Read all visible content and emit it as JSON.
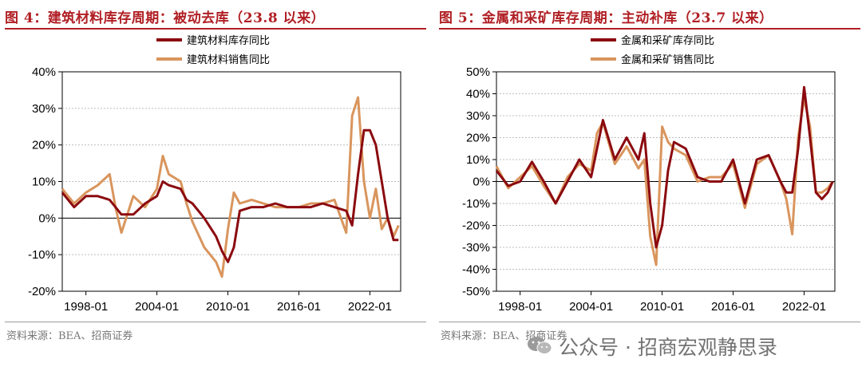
{
  "charts": [
    {
      "title": "图 4：建筑材料库存周期：被动去库（23.8 以来）",
      "source": "资料来源：BEA、招商证券"
    },
    {
      "title": "图 5：金属和采矿库存周期：主动补库（23.7 以来）",
      "source": "资料来源：BEA、招商证券"
    }
  ],
  "watermark": {
    "text": "公众号 · 招商宏观静思录"
  },
  "colors": {
    "inventory": "#8b0a0f",
    "sales": "#d9955d",
    "title": "#b01f24"
  },
  "chart_data": [
    {
      "type": "line",
      "x_ticks": [
        "1998-01",
        "2004-01",
        "2010-01",
        "2016-01",
        "2022-01"
      ],
      "ylim": [
        -20,
        40
      ],
      "y_ticks": [
        -20,
        -10,
        0,
        10,
        20,
        30,
        40
      ],
      "y_tick_labels": [
        "-20%",
        "-10%",
        "0%",
        "10%",
        "20%",
        "30%",
        "40%"
      ],
      "grid": true,
      "legend_position": "top-center",
      "series": [
        {
          "name": "建筑材料库存同比",
          "color": "#8b0a0f",
          "x": [
            "1996-01",
            "1997-01",
            "1998-01",
            "1999-01",
            "2000-01",
            "2001-01",
            "2002-01",
            "2003-01",
            "2004-01",
            "2004-07",
            "2005-01",
            "2006-01",
            "2006-07",
            "2007-01",
            "2008-01",
            "2009-01",
            "2009-07",
            "2010-01",
            "2010-07",
            "2011-01",
            "2012-01",
            "2013-01",
            "2014-01",
            "2015-01",
            "2016-01",
            "2017-01",
            "2018-01",
            "2019-01",
            "2020-01",
            "2020-07",
            "2021-01",
            "2021-07",
            "2022-01",
            "2022-07",
            "2023-01",
            "2023-07",
            "2024-01",
            "2024-06"
          ],
          "values": [
            7,
            3,
            6,
            6,
            5,
            1,
            1,
            4,
            6,
            10,
            9,
            8,
            5,
            4,
            0,
            -5,
            -9,
            -12,
            -8,
            2,
            3,
            3,
            4,
            3,
            3,
            3,
            4,
            3,
            2,
            -2,
            12,
            24,
            24,
            20,
            10,
            0,
            -6,
            -6
          ]
        },
        {
          "name": "建筑材料销售同比",
          "color": "#d9955d",
          "x": [
            "1996-01",
            "1997-01",
            "1998-01",
            "1999-01",
            "2000-01",
            "2000-07",
            "2001-01",
            "2002-01",
            "2003-01",
            "2004-01",
            "2004-07",
            "2005-01",
            "2006-01",
            "2006-07",
            "2007-01",
            "2008-01",
            "2009-01",
            "2009-07",
            "2010-01",
            "2010-07",
            "2011-01",
            "2012-01",
            "2013-01",
            "2014-01",
            "2015-01",
            "2016-01",
            "2017-01",
            "2018-01",
            "2019-01",
            "2020-01",
            "2020-07",
            "2021-01",
            "2021-07",
            "2022-01",
            "2022-07",
            "2023-01",
            "2023-07",
            "2024-01",
            "2024-06"
          ],
          "values": [
            8,
            4,
            7,
            9,
            12,
            3,
            -4,
            6,
            3,
            8,
            17,
            12,
            10,
            4,
            -1,
            -8,
            -12,
            -16,
            -3,
            7,
            4,
            5,
            4,
            3,
            3,
            3,
            4,
            4,
            5,
            -4,
            28,
            33,
            10,
            0,
            8,
            -3,
            0,
            -5,
            -2
          ]
        }
      ]
    },
    {
      "type": "line",
      "x_ticks": [
        "1998-01",
        "2004-01",
        "2010-01",
        "2016-01",
        "2022-01"
      ],
      "ylim": [
        -50,
        50
      ],
      "y_ticks": [
        -50,
        -40,
        -30,
        -20,
        -10,
        0,
        10,
        20,
        30,
        40,
        50
      ],
      "y_tick_labels": [
        "-50%",
        "-40%",
        "-30%",
        "-20%",
        "-10%",
        "0%",
        "10%",
        "20%",
        "30%",
        "40%",
        "50%"
      ],
      "grid": true,
      "legend_position": "top-center",
      "series": [
        {
          "name": "金属和采矿库存同比",
          "color": "#8b0a0f",
          "x": [
            "1996-01",
            "1997-01",
            "1998-01",
            "1999-01",
            "2000-01",
            "2001-01",
            "2002-01",
            "2003-01",
            "2004-01",
            "2004-07",
            "2005-01",
            "2006-01",
            "2007-01",
            "2008-01",
            "2008-07",
            "2009-01",
            "2009-07",
            "2010-01",
            "2010-07",
            "2011-01",
            "2012-01",
            "2013-01",
            "2014-01",
            "2015-01",
            "2016-01",
            "2017-01",
            "2018-01",
            "2019-01",
            "2020-01",
            "2020-07",
            "2021-01",
            "2021-07",
            "2022-01",
            "2022-07",
            "2023-01",
            "2023-07",
            "2024-01",
            "2024-06"
          ],
          "values": [
            5,
            -2,
            0,
            9,
            0,
            -10,
            0,
            10,
            2,
            15,
            28,
            10,
            20,
            10,
            22,
            -10,
            -30,
            -20,
            5,
            18,
            15,
            2,
            0,
            0,
            10,
            -10,
            10,
            12,
            0,
            -5,
            -5,
            15,
            43,
            20,
            -5,
            -8,
            -5,
            0
          ]
        },
        {
          "name": "金属和采矿销售同比",
          "color": "#d9955d",
          "x": [
            "1996-01",
            "1997-01",
            "1998-01",
            "1999-01",
            "2000-01",
            "2001-01",
            "2002-01",
            "2003-01",
            "2004-01",
            "2004-07",
            "2005-01",
            "2006-01",
            "2007-01",
            "2008-01",
            "2008-07",
            "2009-01",
            "2009-07",
            "2010-01",
            "2010-07",
            "2011-01",
            "2012-01",
            "2013-01",
            "2014-01",
            "2015-01",
            "2016-01",
            "2017-01",
            "2018-01",
            "2019-01",
            "2020-01",
            "2020-07",
            "2021-01",
            "2021-07",
            "2022-01",
            "2022-07",
            "2023-01",
            "2023-07",
            "2024-01",
            "2024-06"
          ],
          "values": [
            7,
            -3,
            2,
            7,
            -2,
            -10,
            2,
            8,
            5,
            22,
            27,
            8,
            16,
            6,
            10,
            -25,
            -38,
            25,
            18,
            15,
            12,
            0,
            2,
            2,
            8,
            -12,
            8,
            12,
            0,
            -8,
            -24,
            20,
            38,
            25,
            -5,
            -5,
            -3,
            0
          ]
        }
      ]
    }
  ]
}
